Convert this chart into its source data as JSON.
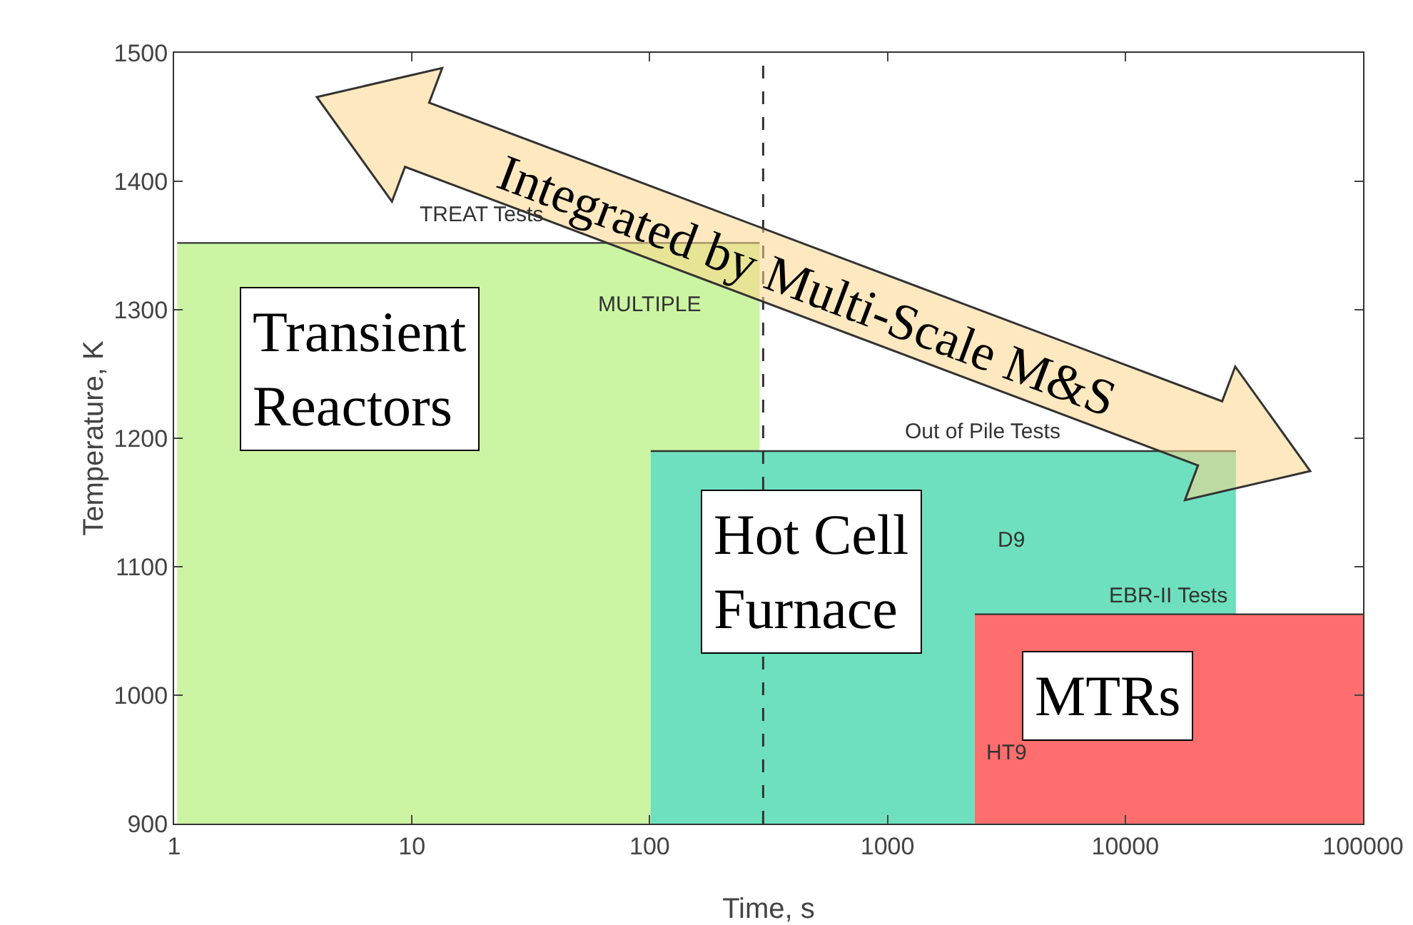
{
  "chart_data": {
    "type": "area",
    "xlabel": "Time, s",
    "ylabel": "Temperature, K",
    "log": "x",
    "xlim": [
      1,
      100000
    ],
    "xticks": [
      1,
      10,
      100,
      1000,
      10000,
      100000
    ],
    "ylim": [
      900,
      1500
    ],
    "yticks": [
      900,
      1000,
      1100,
      1200,
      1300,
      1400,
      1500
    ],
    "grid": false,
    "series": [
      {
        "color": "#ccf5a3",
        "x": [
          1.03,
          290
        ],
        "values": [
          1352,
          1352
        ]
      },
      {
        "color": "#6ee0bf",
        "x": [
          101,
          29200
        ],
        "values": [
          1190,
          1190
        ]
      },
      {
        "color": "#ff6e6e",
        "x": [
          2330,
          100000
        ],
        "values": [
          1063,
          1063
        ]
      }
    ],
    "ref_lines": [
      {
        "axis": "x",
        "value": 300,
        "line_style": "dashed",
        "color": "#333333"
      }
    ],
    "annotations": [
      "Transient\nReactors",
      "Hot Cell\nFurnace",
      "MTRs",
      "TREAT Tests",
      "MULTIPLE",
      "Out of Pile Tests",
      "D9",
      "EBR-II Tests",
      "HT9",
      "Integrated by Multi-Scale M&S"
    ]
  }
}
